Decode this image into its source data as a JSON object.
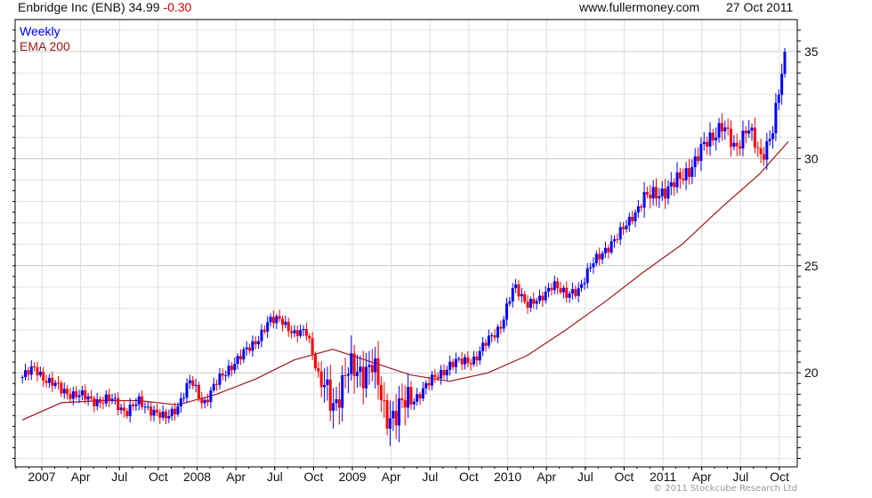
{
  "header": {
    "title": "Enbridge Inc (ENB)",
    "last_price": "34.99",
    "change": "-0.30",
    "site": "www.fullermoney.com",
    "date": "27 Oct 2011"
  },
  "footer": {
    "copyright": "© 2011 Stockcube Research Ltd"
  },
  "colors": {
    "up": "#0000ff",
    "down": "#ff0000",
    "ema": "#a01818",
    "change": "#cc0000"
  },
  "chart_data": {
    "type": "candlestick",
    "title": "Enbridge Inc (ENB) 34.99 -0.30",
    "legend": [
      "Weekly",
      "EMA 200"
    ],
    "legend_placement": "top-left",
    "ylim": [
      15.6,
      36.5
    ],
    "y_ticks": [
      20,
      25,
      30,
      35
    ],
    "x_tick_labels": [
      "2007",
      "Apr",
      "Jul",
      "Oct",
      "2008",
      "Apr",
      "Jul",
      "Oct",
      "2009",
      "Apr",
      "Jul",
      "Oct",
      "2010",
      "Apr",
      "Jul",
      "Oct",
      "2011",
      "Apr",
      "Jul",
      "Oct"
    ],
    "grid": true,
    "monthly_close_start": "2006-11",
    "monthly_close": [
      19.8,
      20.2,
      19.6,
      19.2,
      19.0,
      18.8,
      18.7,
      18.7,
      18.2,
      18.6,
      18.3,
      17.8,
      18.5,
      19.6,
      18.6,
      19.5,
      20.3,
      20.8,
      21.5,
      22.3,
      22.6,
      21.7,
      22.0,
      19.5,
      18.5,
      20.0,
      20.0,
      20.5,
      18.0,
      18.3,
      18.6,
      19.3,
      19.8,
      20.4,
      20.5,
      20.7,
      21.5,
      22.3,
      24.0,
      23.3,
      23.3,
      24.3,
      23.5,
      24.0,
      25.0,
      25.8,
      26.3,
      27.3,
      28.0,
      28.5,
      28.5,
      29.3,
      29.8,
      31.0,
      31.5,
      30.5,
      31.5,
      30.0,
      31.5,
      35.0
    ],
    "ema_200_start": "2006-11",
    "ema_200_quarterly": [
      17.8,
      18.6,
      18.7,
      18.7,
      18.5,
      19.0,
      19.7,
      20.6,
      21.1,
      20.5,
      19.9,
      19.6,
      20.0,
      20.8,
      22.0,
      23.3,
      24.7,
      26.0,
      27.7,
      29.3,
      30.8
    ]
  }
}
